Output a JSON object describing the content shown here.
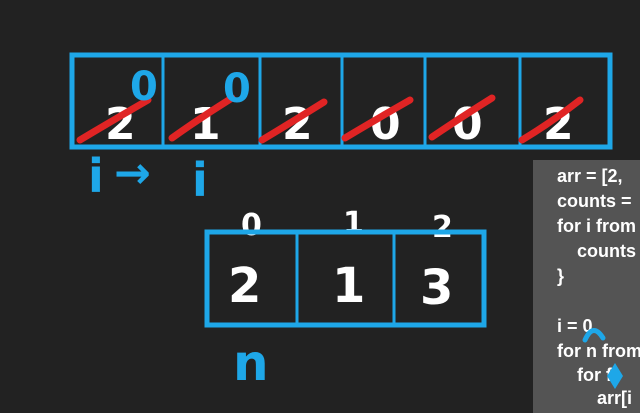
{
  "top_array": {
    "values": [
      "2",
      "1",
      "2",
      "0",
      "0",
      "2"
    ],
    "overwrites": [
      "0",
      "0",
      "",
      "",
      "",
      ""
    ]
  },
  "pointer": {
    "start": "i",
    "arrow": "→",
    "end": "i"
  },
  "counts_array": {
    "indices": [
      "0",
      "1",
      "2"
    ],
    "values": [
      "2",
      "1",
      "3"
    ],
    "label": "n"
  },
  "code": {
    "lines": [
      "arr = [2,",
      "counts =",
      "for i from",
      "    counts",
      "}",
      "",
      "i = 0",
      "for n from",
      "    for fr",
      "        arr[i"
    ]
  },
  "colors": {
    "background": "#222222",
    "box": "#1ea7e8",
    "strike": "#e02424",
    "ink": "#ffffff",
    "panel": "#545454"
  }
}
